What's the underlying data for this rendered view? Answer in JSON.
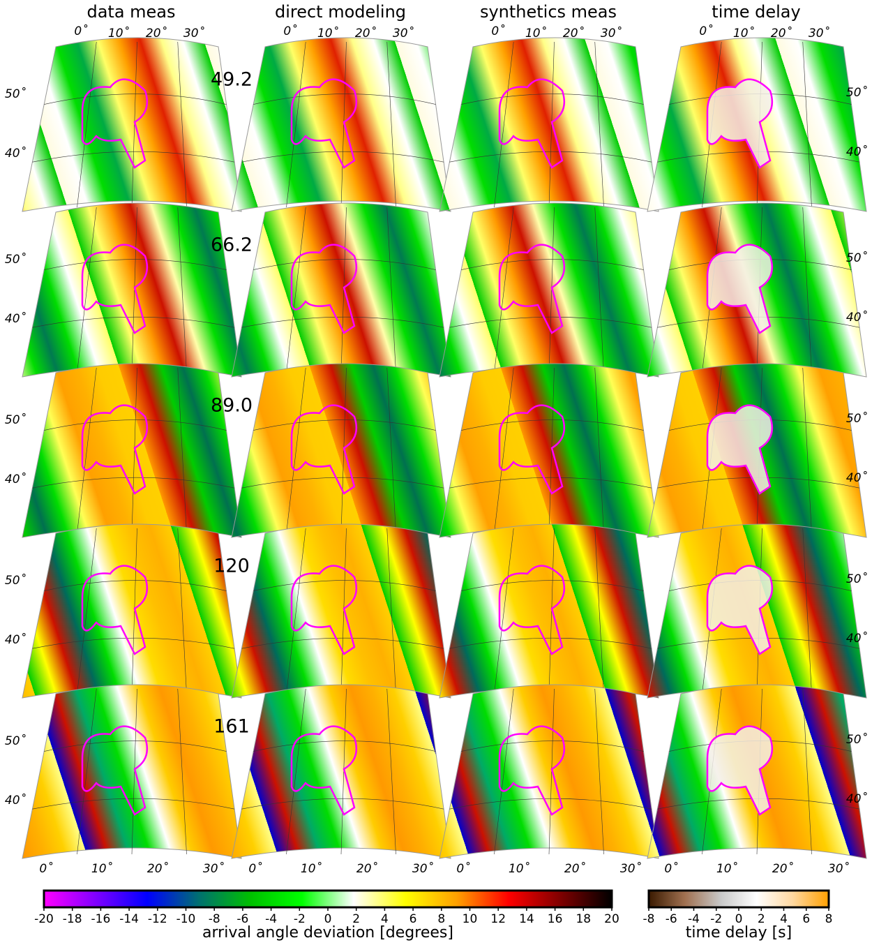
{
  "columns": [
    "data meas",
    "direct modeling",
    "synthetics meas",
    "time delay"
  ],
  "periods": [
    "49.2",
    "66.2",
    "89.0",
    "120",
    "161"
  ],
  "longitude_labels": [
    "0˚",
    "10˚",
    "20˚",
    "30˚"
  ],
  "latitude_labels": [
    "50˚",
    "40˚"
  ],
  "colorbars": [
    {
      "label": "arrival angle deviation [degrees]",
      "range": [
        -20,
        20
      ],
      "ticks": [
        -20,
        -18,
        -16,
        -14,
        -12,
        -10,
        -8,
        -6,
        -4,
        -2,
        0,
        2,
        4,
        6,
        8,
        10,
        12,
        14,
        16,
        18,
        20
      ],
      "colors": [
        "#ff00ff",
        "#8000ff",
        "#0000ff",
        "#007070",
        "#00c000",
        "#00ff00",
        "#ffffff",
        "#ffff00",
        "#ffa000",
        "#ff0000",
        "#800000",
        "#000000"
      ]
    },
    {
      "label": "time delay [s]",
      "range": [
        -8,
        8
      ],
      "ticks": [
        -8,
        -6,
        -4,
        -2,
        0,
        2,
        4,
        6,
        8
      ],
      "colors": [
        "#3a1a00",
        "#a07050",
        "#c8c8c8",
        "#ffffff",
        "#ffd8a0",
        "#ffa000"
      ]
    }
  ]
}
